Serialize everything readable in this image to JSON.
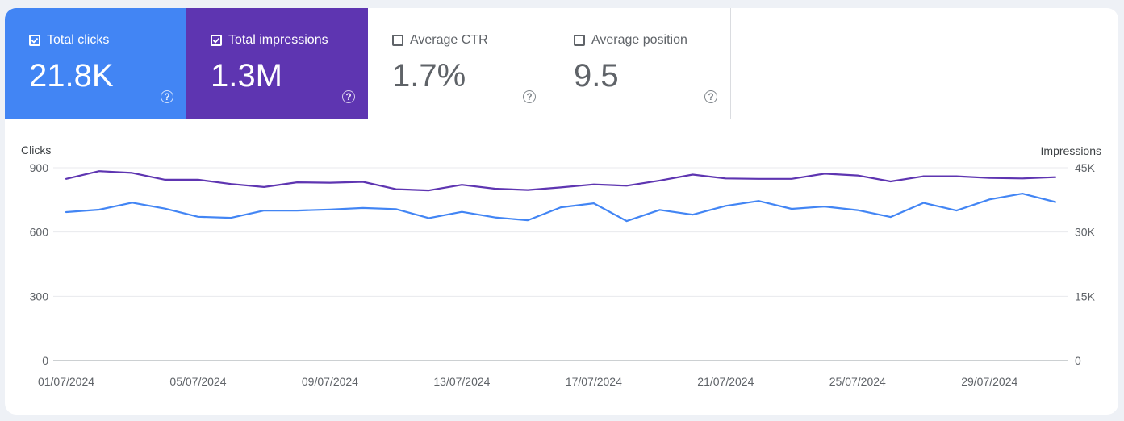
{
  "metrics": [
    {
      "label": "Total clicks",
      "value": "21.8K",
      "checked": true,
      "color": "#4285f4"
    },
    {
      "label": "Total impressions",
      "value": "1.3M",
      "checked": true,
      "color": "#5e35b1"
    },
    {
      "label": "Average CTR",
      "value": "1.7%",
      "checked": false,
      "color": "#ffffff"
    },
    {
      "label": "Average position",
      "value": "9.5",
      "checked": false,
      "color": "#ffffff"
    }
  ],
  "help_glyph": "?",
  "chart_data": {
    "type": "line",
    "ylabel_left": "Clicks",
    "ylabel_right": "Impressions",
    "y_left_ticks": [
      "900",
      "600",
      "300",
      "0"
    ],
    "y_left_range": [
      0,
      900
    ],
    "y_right_ticks": [
      "45K",
      "30K",
      "15K",
      "0"
    ],
    "y_right_range": [
      0,
      45000
    ],
    "x_tick_labels": [
      "01/07/2024",
      "05/07/2024",
      "09/07/2024",
      "13/07/2024",
      "17/07/2024",
      "21/07/2024",
      "25/07/2024",
      "29/07/2024"
    ],
    "x": [
      "01/07/2024",
      "02/07/2024",
      "03/07/2024",
      "04/07/2024",
      "05/07/2024",
      "06/07/2024",
      "07/07/2024",
      "08/07/2024",
      "09/07/2024",
      "10/07/2024",
      "11/07/2024",
      "12/07/2024",
      "13/07/2024",
      "14/07/2024",
      "15/07/2024",
      "16/07/2024",
      "17/07/2024",
      "18/07/2024",
      "19/07/2024",
      "20/07/2024",
      "21/07/2024",
      "22/07/2024",
      "23/07/2024",
      "24/07/2024",
      "25/07/2024",
      "26/07/2024",
      "27/07/2024",
      "28/07/2024",
      "29/07/2024",
      "30/07/2024",
      "31/07/2024"
    ],
    "grid": true,
    "series": [
      {
        "name": "Total impressions",
        "axis": "right",
        "color": "#5e35b1",
        "values": [
          42400,
          44200,
          43800,
          42200,
          42200,
          41200,
          40500,
          41600,
          41500,
          41700,
          40000,
          39700,
          41000,
          40100,
          39800,
          40400,
          41100,
          40800,
          42000,
          43400,
          42500,
          42400,
          42400,
          43600,
          43200,
          41800,
          43000,
          43000,
          42600,
          42500,
          42800
        ]
      },
      {
        "name": "Total clicks",
        "axis": "left",
        "color": "#4285f4",
        "values": [
          693,
          704,
          737,
          709,
          671,
          666,
          700,
          700,
          705,
          712,
          707,
          665,
          694,
          668,
          655,
          715,
          734,
          651,
          703,
          681,
          722,
          745,
          708,
          719,
          702,
          670,
          736,
          700,
          752,
          779,
          740
        ]
      }
    ]
  }
}
